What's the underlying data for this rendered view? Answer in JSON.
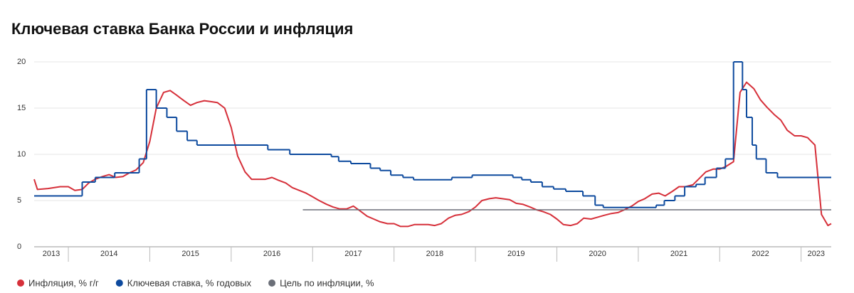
{
  "chart_data": {
    "type": "line",
    "title": "Ключевая ставка Банка России и инфляция",
    "xlim": [
      2013.58,
      2023.37
    ],
    "xticks": [
      2013,
      2014,
      2015,
      2016,
      2017,
      2018,
      2019,
      2020,
      2021,
      2022,
      2023
    ],
    "ylim": [
      0,
      20
    ],
    "yticks": [
      0,
      5,
      10,
      15,
      20
    ],
    "grid": true,
    "legend": "bottom",
    "series": [
      {
        "name": "Инфляция, % г/г",
        "color": "#d6303a",
        "drawstyle": "line",
        "x": [
          2013.58,
          2013.62,
          2013.75,
          2013.9,
          2014.0,
          2014.08,
          2014.17,
          2014.25,
          2014.33,
          2014.42,
          2014.5,
          2014.58,
          2014.67,
          2014.75,
          2014.83,
          2014.92,
          2015.0,
          2015.08,
          2015.17,
          2015.25,
          2015.33,
          2015.42,
          2015.5,
          2015.58,
          2015.67,
          2015.75,
          2015.83,
          2015.92,
          2016.0,
          2016.08,
          2016.17,
          2016.25,
          2016.42,
          2016.5,
          2016.58,
          2016.67,
          2016.75,
          2016.92,
          2017.0,
          2017.08,
          2017.17,
          2017.25,
          2017.33,
          2017.42,
          2017.5,
          2017.58,
          2017.67,
          2017.75,
          2017.83,
          2017.92,
          2018.0,
          2018.08,
          2018.17,
          2018.25,
          2018.42,
          2018.5,
          2018.58,
          2018.67,
          2018.75,
          2018.83,
          2018.92,
          2019.0,
          2019.08,
          2019.17,
          2019.25,
          2019.33,
          2019.42,
          2019.5,
          2019.58,
          2019.67,
          2019.75,
          2019.83,
          2019.92,
          2020.0,
          2020.08,
          2020.17,
          2020.25,
          2020.33,
          2020.42,
          2020.5,
          2020.58,
          2020.67,
          2020.75,
          2020.83,
          2020.92,
          2021.0,
          2021.08,
          2021.17,
          2021.25,
          2021.33,
          2021.42,
          2021.5,
          2021.58,
          2021.67,
          2021.75,
          2021.83,
          2021.92,
          2022.0,
          2022.08,
          2022.17,
          2022.25,
          2022.33,
          2022.42,
          2022.5,
          2022.58,
          2022.67,
          2022.75,
          2022.83,
          2022.92,
          2023.0,
          2023.08,
          2023.17,
          2023.25,
          2023.33,
          2023.37
        ],
        "values": [
          7.3,
          6.2,
          6.3,
          6.5,
          6.5,
          6.1,
          6.2,
          6.9,
          7.3,
          7.6,
          7.8,
          7.5,
          7.6,
          8.0,
          8.3,
          9.1,
          11.4,
          15.0,
          16.7,
          16.9,
          16.4,
          15.8,
          15.3,
          15.6,
          15.8,
          15.7,
          15.6,
          15.0,
          12.9,
          9.8,
          8.1,
          7.3,
          7.3,
          7.5,
          7.2,
          6.9,
          6.4,
          5.8,
          5.4,
          5.0,
          4.6,
          4.3,
          4.1,
          4.1,
          4.4,
          3.9,
          3.3,
          3.0,
          2.7,
          2.5,
          2.5,
          2.2,
          2.2,
          2.4,
          2.4,
          2.3,
          2.5,
          3.1,
          3.4,
          3.5,
          3.8,
          4.3,
          5.0,
          5.2,
          5.3,
          5.2,
          5.1,
          4.7,
          4.6,
          4.3,
          4.0,
          3.8,
          3.5,
          3.0,
          2.4,
          2.3,
          2.5,
          3.1,
          3.0,
          3.2,
          3.4,
          3.6,
          3.7,
          4.0,
          4.4,
          4.9,
          5.2,
          5.7,
          5.8,
          5.5,
          6.0,
          6.5,
          6.5,
          6.7,
          7.4,
          8.1,
          8.4,
          8.4,
          8.7,
          9.2,
          16.7,
          17.8,
          17.1,
          15.9,
          15.1,
          14.3,
          13.7,
          12.6,
          12.0,
          12.0,
          11.8,
          11.0,
          3.5,
          2.3,
          2.5
        ]
      },
      {
        "name": "Ключевая ставка, % годовых",
        "color": "#0d4a9e",
        "drawstyle": "steps-post",
        "x": [
          2013.58,
          2014.17,
          2014.33,
          2014.57,
          2014.87,
          2014.96,
          2015.08,
          2015.21,
          2015.33,
          2015.46,
          2015.58,
          2016.45,
          2016.72,
          2017.23,
          2017.32,
          2017.47,
          2017.71,
          2017.83,
          2017.96,
          2018.11,
          2018.24,
          2018.71,
          2018.96,
          2019.46,
          2019.57,
          2019.68,
          2019.82,
          2019.96,
          2020.11,
          2020.32,
          2020.47,
          2020.57,
          2021.22,
          2021.32,
          2021.45,
          2021.57,
          2021.71,
          2021.82,
          2021.96,
          2022.07,
          2022.17,
          2022.28,
          2022.33,
          2022.4,
          2022.45,
          2022.57,
          2022.71
        ],
        "values": [
          5.5,
          7.0,
          7.5,
          8.0,
          9.5,
          17,
          15,
          14,
          12.5,
          11.5,
          11,
          10.5,
          10,
          9.75,
          9.25,
          9.0,
          8.5,
          8.25,
          7.75,
          7.5,
          7.25,
          7.5,
          7.75,
          7.5,
          7.25,
          7.0,
          6.5,
          6.25,
          6.0,
          5.5,
          4.5,
          4.25,
          4.5,
          5.0,
          5.5,
          6.5,
          6.75,
          7.5,
          8.5,
          9.5,
          20,
          17,
          14,
          11,
          9.5,
          8.0,
          7.5
        ]
      },
      {
        "name": "Цель по инфляции, %",
        "color": "#6b6f78",
        "drawstyle": "line",
        "x": [
          2016.88,
          2023.37
        ],
        "values": [
          4,
          4
        ]
      }
    ]
  }
}
